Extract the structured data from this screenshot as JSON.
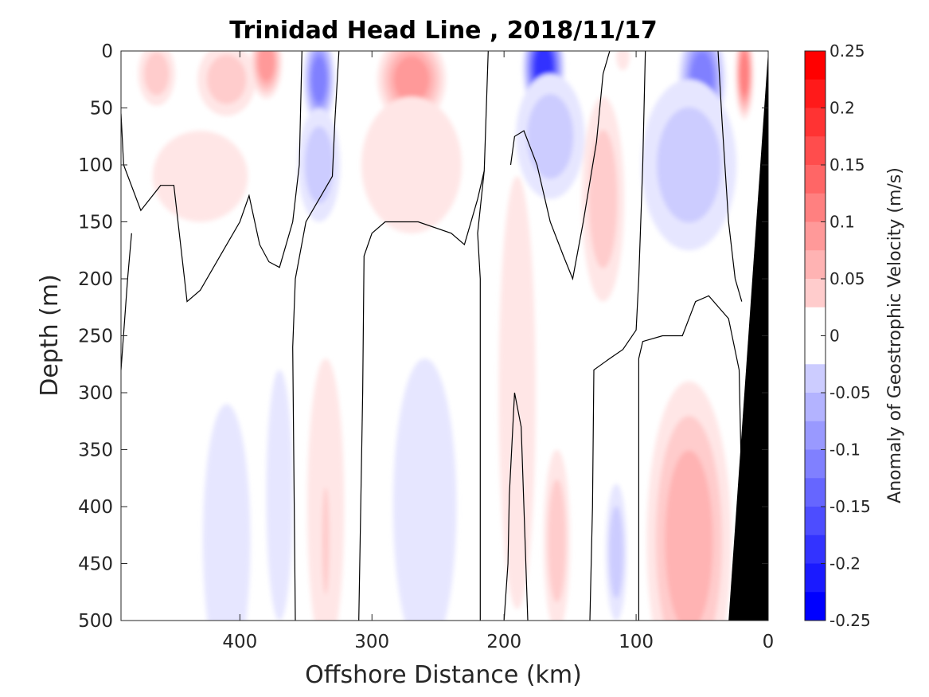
{
  "chart_data": {
    "type": "heatmap",
    "title": "Trinidad Head Line , 2018/11/17",
    "xlabel": "Offshore Distance (km)",
    "ylabel": "Depth (m)",
    "xlim": [
      490,
      0
    ],
    "ylim": [
      0,
      500
    ],
    "x_ticks": [
      "400",
      "300",
      "200",
      "100",
      "0"
    ],
    "x_tick_values": [
      400,
      300,
      200,
      100,
      0
    ],
    "y_ticks": [
      "0",
      "50",
      "100",
      "150",
      "200",
      "250",
      "300",
      "350",
      "400",
      "450",
      "500"
    ],
    "y_tick_values": [
      0,
      50,
      100,
      150,
      200,
      250,
      300,
      350,
      400,
      450,
      500
    ],
    "colorbar": {
      "label": "Anomaly of Geostrophic Velocity (m/s)",
      "range": [
        -0.25,
        0.25
      ],
      "tick_labels": [
        "0.25",
        "0.2",
        "0.15",
        "0.1",
        "0.05",
        "0",
        "-0.05",
        "-0.1",
        "-0.15",
        "-0.2",
        "-0.25"
      ],
      "tick_values": [
        0.25,
        0.2,
        0.15,
        0.1,
        0.05,
        0,
        -0.05,
        -0.1,
        -0.15,
        -0.2,
        -0.25
      ],
      "level_step": 0.025,
      "positive_color": "#ff0000",
      "negative_color": "#0000ff",
      "zero_color": "#ffffff"
    },
    "colors": {
      "seafloor": "#000000",
      "contour_line": "#000000"
    },
    "features": [
      {
        "x": 463,
        "depth": 20,
        "value": 0.075,
        "sx": 14,
        "sy": 28
      },
      {
        "x": 410,
        "depth": 25,
        "value": 0.075,
        "sx": 22,
        "sy": 32
      },
      {
        "x": 380,
        "depth": 10,
        "value": 0.1,
        "sx": 12,
        "sy": 32
      },
      {
        "x": 430,
        "depth": 110,
        "value": 0.03,
        "sx": 36,
        "sy": 40
      },
      {
        "x": 340,
        "depth": 25,
        "value": -0.15,
        "sx": 12,
        "sy": 42
      },
      {
        "x": 340,
        "depth": 100,
        "value": -0.05,
        "sx": 16,
        "sy": 50
      },
      {
        "x": 270,
        "depth": 25,
        "value": 0.1,
        "sx": 26,
        "sy": 40
      },
      {
        "x": 270,
        "depth": 100,
        "value": 0.045,
        "sx": 38,
        "sy": 60
      },
      {
        "x": 170,
        "depth": 15,
        "value": -0.2,
        "sx": 16,
        "sy": 45
      },
      {
        "x": 165,
        "depth": 75,
        "value": -0.075,
        "sx": 26,
        "sy": 55
      },
      {
        "x": 50,
        "depth": 25,
        "value": -0.15,
        "sx": 18,
        "sy": 50
      },
      {
        "x": 60,
        "depth": 100,
        "value": -0.065,
        "sx": 36,
        "sy": 75
      },
      {
        "x": 125,
        "depth": 130,
        "value": 0.05,
        "sx": 16,
        "sy": 90
      },
      {
        "x": 18,
        "depth": 20,
        "value": 0.14,
        "sx": 7,
        "sy": 40
      },
      {
        "x": 110,
        "depth": 5,
        "value": 0.04,
        "sx": 5,
        "sy": 12
      },
      {
        "x": 410,
        "depth": 430,
        "value": -0.04,
        "sx": 18,
        "sy": 120
      },
      {
        "x": 370,
        "depth": 390,
        "value": -0.035,
        "sx": 10,
        "sy": 110
      },
      {
        "x": 335,
        "depth": 400,
        "value": 0.04,
        "sx": 14,
        "sy": 130
      },
      {
        "x": 335,
        "depth": 430,
        "value": 0.07,
        "sx": 4,
        "sy": 70
      },
      {
        "x": 260,
        "depth": 400,
        "value": -0.045,
        "sx": 24,
        "sy": 130
      },
      {
        "x": 190,
        "depth": 300,
        "value": 0.04,
        "sx": 14,
        "sy": 190
      },
      {
        "x": 160,
        "depth": 430,
        "value": 0.075,
        "sx": 10,
        "sy": 80
      },
      {
        "x": 115,
        "depth": 440,
        "value": -0.05,
        "sx": 8,
        "sy": 60
      },
      {
        "x": 60,
        "depth": 430,
        "value": 0.09,
        "sx": 32,
        "sy": 140
      }
    ],
    "zero_contours": [
      [
        [
          490,
          55
        ],
        [
          488,
          100
        ],
        [
          475,
          140
        ],
        [
          460,
          118
        ],
        [
          450,
          118
        ],
        [
          440,
          220
        ],
        [
          430,
          210
        ],
        [
          415,
          180
        ],
        [
          400,
          150
        ],
        [
          393,
          127
        ],
        [
          385,
          170
        ],
        [
          378,
          185
        ],
        [
          370,
          190
        ],
        [
          360,
          150
        ],
        [
          355,
          100
        ],
        [
          353,
          0
        ]
      ],
      [
        [
          490,
          280
        ],
        [
          485,
          200
        ],
        [
          482,
          160
        ]
      ],
      [
        [
          358,
          500
        ],
        [
          360,
          260
        ],
        [
          358,
          200
        ],
        [
          350,
          150
        ],
        [
          340,
          130
        ],
        [
          330,
          110
        ],
        [
          328,
          60
        ],
        [
          325,
          0
        ]
      ],
      [
        [
          310,
          500
        ],
        [
          307,
          300
        ],
        [
          306,
          180
        ],
        [
          300,
          160
        ],
        [
          290,
          150
        ],
        [
          265,
          150
        ],
        [
          240,
          160
        ],
        [
          230,
          170
        ],
        [
          220,
          130
        ],
        [
          215,
          105
        ],
        [
          212,
          0
        ]
      ],
      [
        [
          218,
          500
        ],
        [
          218,
          200
        ],
        [
          220,
          160
        ],
        [
          215,
          105
        ]
      ],
      [
        [
          200,
          500
        ],
        [
          197,
          450
        ],
        [
          196,
          390
        ],
        [
          192,
          300
        ],
        [
          187,
          330
        ],
        [
          182,
          500
        ]
      ],
      [
        [
          195,
          100
        ],
        [
          192,
          75
        ],
        [
          185,
          70
        ],
        [
          175,
          100
        ],
        [
          165,
          150
        ],
        [
          155,
          180
        ],
        [
          148,
          200
        ],
        [
          140,
          150
        ],
        [
          130,
          80
        ],
        [
          125,
          20
        ],
        [
          120,
          0
        ]
      ],
      [
        [
          135,
          500
        ],
        [
          133,
          400
        ],
        [
          132,
          280
        ],
        [
          120,
          270
        ],
        [
          110,
          262
        ],
        [
          100,
          245
        ],
        [
          98,
          200
        ],
        [
          95,
          100
        ],
        [
          93,
          0
        ]
      ],
      [
        [
          98,
          500
        ],
        [
          98,
          270
        ],
        [
          95,
          255
        ],
        [
          80,
          250
        ],
        [
          65,
          250
        ],
        [
          55,
          220
        ],
        [
          45,
          215
        ],
        [
          30,
          235
        ],
        [
          22,
          280
        ],
        [
          18,
          500
        ]
      ],
      [
        [
          38,
          0
        ],
        [
          35,
          60
        ],
        [
          30,
          150
        ],
        [
          25,
          200
        ],
        [
          20,
          220
        ]
      ]
    ],
    "seafloor": [
      [
        0,
        0
      ],
      [
        30,
        500
      ],
      [
        0,
        500
      ]
    ]
  }
}
